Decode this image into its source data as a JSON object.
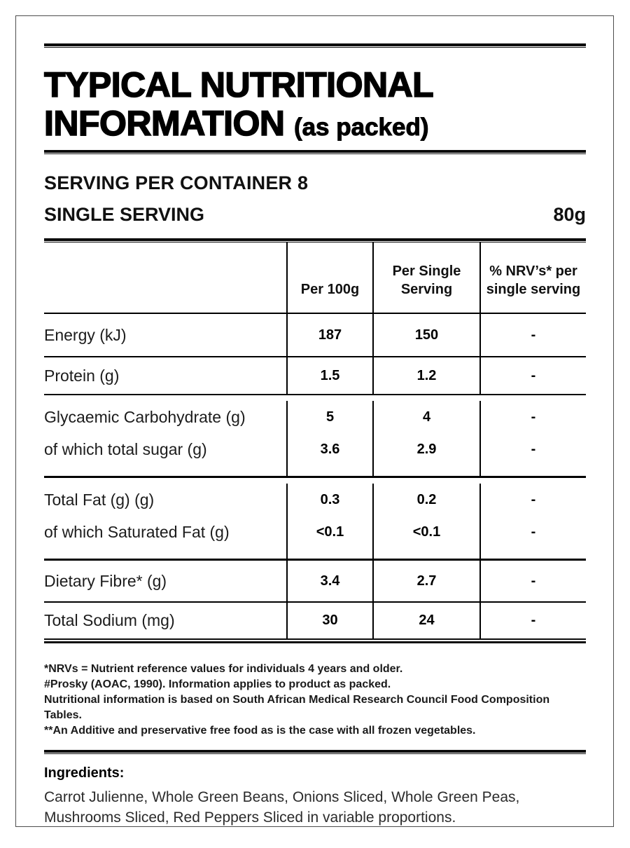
{
  "title": {
    "line1": "TYPICAL NUTRITIONAL",
    "line2": "INFORMATION",
    "suffix": "(as packed)"
  },
  "serving": {
    "per_container": "SERVING PER CONTAINER 8",
    "single_label": "SINGLE SERVING",
    "single_value": "80g"
  },
  "table": {
    "header": {
      "per_100g": "Per 100g",
      "per_serving": "Per Single\nServing",
      "nrv": "% NRV’s* per\nsingle serving"
    },
    "rows": [
      {
        "label": "Energy (kJ)",
        "per_100g": "187",
        "per_serving": "150",
        "nrv": "-"
      },
      {
        "label": "Protein (g)",
        "per_100g": "1.5",
        "per_serving": "1.2",
        "nrv": "-"
      },
      {
        "label": "Glycaemic Carbohydrate (g)",
        "per_100g": "5",
        "per_serving": "4",
        "nrv": "-"
      },
      {
        "label": "of which total sugar (g)",
        "per_100g": "3.6",
        "per_serving": "2.9",
        "nrv": "-"
      },
      {
        "label": "Total Fat (g) (g)",
        "per_100g": "0.3",
        "per_serving": "0.2",
        "nrv": "-"
      },
      {
        "label": "of which Saturated Fat (g)",
        "per_100g": "<0.1",
        "per_serving": "<0.1",
        "nrv": "-"
      },
      {
        "label": "Dietary Fibre* (g)",
        "per_100g": "3.4",
        "per_serving": "2.7",
        "nrv": "-"
      },
      {
        "label": "Total Sodium (mg)",
        "per_100g": "30",
        "per_serving": "24",
        "nrv": "-"
      }
    ]
  },
  "footnotes": [
    "*NRVs = Nutrient reference values for individuals 4 years and older.",
    "#Prosky (AOAC, 1990). Information applies to product as packed.",
    "Nutritional information is based on South African Medical Research Council Food Composition Tables.",
    "**An Additive and preservative free food as is the case with all frozen vegetables."
  ],
  "ingredients": {
    "heading": "Ingredients:",
    "text": "Carrot Julienne, Whole Green Beans, Onions Sliced, Whole Green Peas, Mushrooms Sliced, Red Peppers Sliced in variable proportions."
  }
}
